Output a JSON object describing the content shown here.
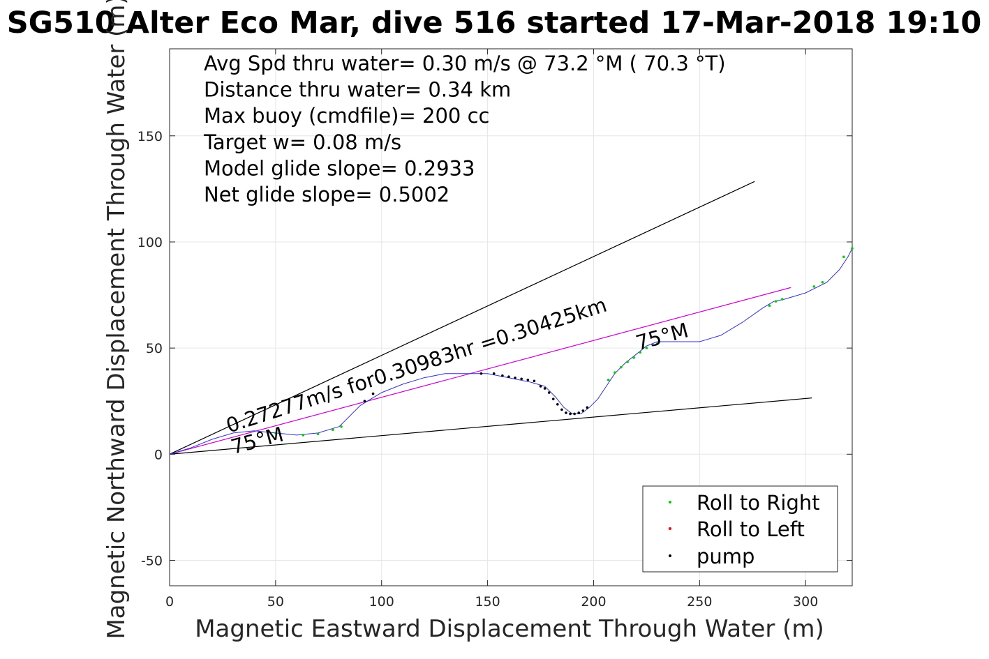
{
  "chart_data": {
    "type": "line",
    "title": "SG510 Alter Eco Mar, dive 516 started 17-Mar-2018 19:10",
    "xlabel": "Magnetic Eastward Displacement Through Water (m)",
    "ylabel": "Magnetic Northward Displacement Through Water (m)",
    "xlim": [
      0,
      322
    ],
    "ylim": [
      -62,
      191
    ],
    "xticks": [
      0,
      50,
      100,
      150,
      200,
      250,
      300
    ],
    "yticks": [
      -50,
      0,
      50,
      100,
      150
    ],
    "grid": true,
    "legend_position": "bottom-right",
    "info_lines": [
      "Avg Spd thru water=  0.30 m/s @  73.2 °M ( 70.3 °T)",
      "Distance thru water=  0.34 km",
      "Max buoy (cmdfile)= 200 cc",
      "Target w= 0.08 m/s",
      "Model glide slope= 0.2933",
      "Net glide slope= 0.5002"
    ],
    "annotations": [
      {
        "text": "0.27277m/s for0.30983hr =0.30425km",
        "x": 28,
        "y": 10,
        "rotation_deg": 17.9
      },
      {
        "text": "75°M",
        "x": 30,
        "y": 0,
        "rotation_deg": 15
      },
      {
        "text": "75°M",
        "x": 221,
        "y": 49,
        "rotation_deg": 15
      }
    ],
    "reference_lines": [
      {
        "name": "upper",
        "color": "#000000",
        "x": [
          0,
          276
        ],
        "y": [
          0,
          128.5
        ]
      },
      {
        "name": "lower",
        "color": "#000000",
        "x": [
          0,
          303
        ],
        "y": [
          0,
          26.5
        ]
      },
      {
        "name": "mean heading",
        "color": "#cc00cc",
        "x": [
          0,
          293
        ],
        "y": [
          0,
          78.5
        ]
      }
    ],
    "track": {
      "color": "#3333cc",
      "x": [
        0,
        10,
        20,
        30,
        40,
        50,
        60,
        70,
        80,
        90,
        100,
        110,
        120,
        130,
        140,
        150,
        160,
        170,
        177,
        182,
        186,
        190,
        194,
        198,
        202,
        206,
        210,
        215,
        220,
        225,
        230,
        240,
        250,
        260,
        270,
        280,
        285,
        290,
        300,
        310,
        316,
        320,
        322
      ],
      "y": [
        0,
        3,
        7,
        10,
        11,
        10,
        9,
        10,
        13,
        23,
        29,
        33,
        36,
        38,
        38,
        38,
        36,
        34,
        32,
        27,
        22,
        19,
        19,
        22,
        26,
        32,
        38,
        43,
        47,
        51,
        53,
        53,
        53,
        56,
        62,
        69,
        72,
        73,
        76,
        81,
        87,
        93,
        97
      ]
    },
    "series": [
      {
        "name": "Roll to Right",
        "color": "#00cc00",
        "x": [
          50,
          63,
          70,
          77,
          81,
          207,
          210,
          213,
          216,
          219,
          222,
          225,
          230,
          283,
          286,
          289,
          304,
          308,
          318,
          322
        ],
        "y": [
          10,
          9,
          9.5,
          11.5,
          13,
          35,
          38.5,
          41,
          43.5,
          45.5,
          48,
          50,
          52,
          70,
          72,
          73,
          79,
          81,
          93,
          97
        ]
      },
      {
        "name": "Roll to Left",
        "color": "#ff0000",
        "x": [],
        "y": []
      },
      {
        "name": "pump",
        "color": "#000000",
        "x": [
          92,
          96,
          147,
          153,
          157,
          160,
          163,
          166,
          169,
          172,
          175,
          177,
          179,
          181,
          183,
          185,
          187,
          189,
          191,
          193,
          195,
          197
        ],
        "y": [
          25,
          28.5,
          38,
          38,
          37,
          36.5,
          36,
          35.5,
          35,
          34.5,
          32,
          31,
          29,
          26,
          23.5,
          21,
          19.5,
          19,
          19,
          19.5,
          20.5,
          22
        ]
      }
    ]
  }
}
